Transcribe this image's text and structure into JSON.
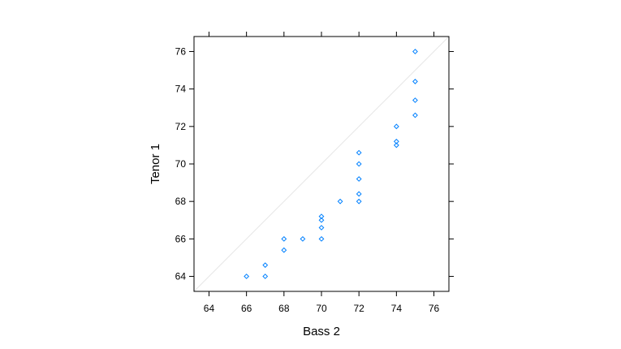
{
  "chart_data": {
    "type": "scatter",
    "xlabel": "Bass 2",
    "ylabel": "Tenor 1",
    "xlim": [
      63.2,
      76.8
    ],
    "ylim": [
      63.2,
      76.8
    ],
    "x_ticks": [
      64,
      66,
      68,
      70,
      72,
      74,
      76
    ],
    "y_ticks": [
      64,
      66,
      68,
      70,
      72,
      74,
      76
    ],
    "grid": false,
    "reference_line": "y = x",
    "colors": {
      "points": "#0080ff",
      "reference_line": "#e6e6e6",
      "frame": "#000000"
    },
    "points": [
      {
        "x": 66,
        "y": 64
      },
      {
        "x": 67,
        "y": 64
      },
      {
        "x": 67,
        "y": 64.6
      },
      {
        "x": 68,
        "y": 65.4
      },
      {
        "x": 68,
        "y": 66
      },
      {
        "x": 69,
        "y": 66
      },
      {
        "x": 70,
        "y": 66
      },
      {
        "x": 70,
        "y": 66.6
      },
      {
        "x": 70,
        "y": 67
      },
      {
        "x": 70,
        "y": 67.2
      },
      {
        "x": 71,
        "y": 68
      },
      {
        "x": 72,
        "y": 68
      },
      {
        "x": 72,
        "y": 68.4
      },
      {
        "x": 72,
        "y": 69.2
      },
      {
        "x": 72,
        "y": 70
      },
      {
        "x": 72,
        "y": 70.6
      },
      {
        "x": 74,
        "y": 71
      },
      {
        "x": 74,
        "y": 71.2
      },
      {
        "x": 74,
        "y": 72
      },
      {
        "x": 75,
        "y": 72.6
      },
      {
        "x": 75,
        "y": 73.4
      },
      {
        "x": 75,
        "y": 74.4
      },
      {
        "x": 75,
        "y": 76
      }
    ]
  }
}
